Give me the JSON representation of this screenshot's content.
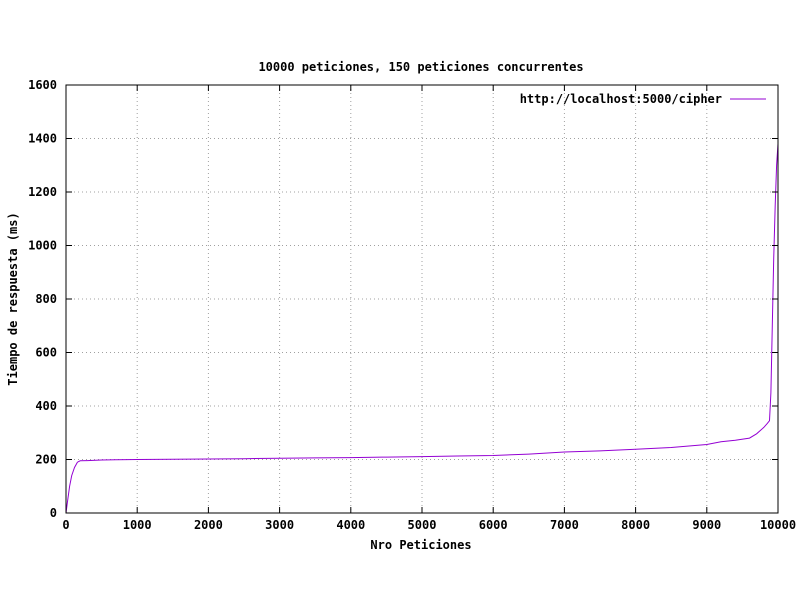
{
  "chart_data": {
    "type": "line",
    "title": "10000 peticiones, 150 peticiones concurrentes",
    "xlabel": "Nro Peticiones",
    "ylabel": "Tiempo de respuesta (ms)",
    "xlim": [
      0,
      10000
    ],
    "ylim": [
      0,
      1600
    ],
    "xticks": [
      0,
      1000,
      2000,
      3000,
      4000,
      5000,
      6000,
      7000,
      8000,
      9000,
      10000
    ],
    "yticks": [
      0,
      200,
      400,
      600,
      800,
      1000,
      1200,
      1400,
      1600
    ],
    "grid": true,
    "legend_position": "top-right",
    "series": [
      {
        "name": "http://localhost:5000/cipher",
        "color": "#9400d3",
        "x": [
          0,
          20,
          50,
          80,
          120,
          160,
          200,
          300,
          500,
          700,
          1000,
          1500,
          2000,
          2500,
          3000,
          3500,
          4000,
          4500,
          5000,
          5500,
          6000,
          6500,
          7000,
          7500,
          8000,
          8500,
          9000,
          9200,
          9400,
          9600,
          9700,
          9800,
          9850,
          9880,
          9900,
          9920,
          9940,
          9960,
          9980,
          10000
        ],
        "y": [
          0,
          40,
          100,
          140,
          170,
          190,
          195,
          196,
          198,
          199,
          200,
          201,
          202,
          203,
          205,
          206,
          207,
          209,
          211,
          213,
          215,
          220,
          228,
          232,
          238,
          245,
          256,
          266,
          272,
          280,
          296,
          320,
          335,
          345,
          450,
          700,
          950,
          1150,
          1300,
          1380
        ]
      }
    ]
  }
}
